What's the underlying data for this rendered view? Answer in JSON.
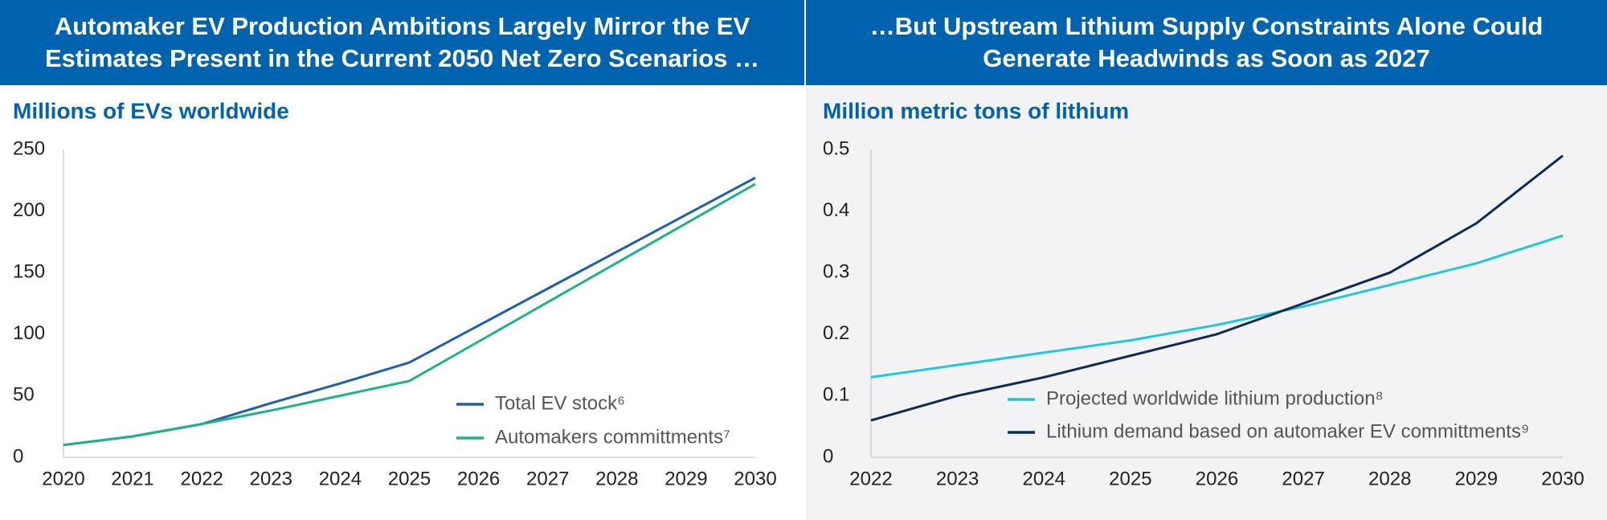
{
  "chart_data": [
    {
      "type": "line",
      "title": "Automaker EV Production Ambitions Largely Mirror the EV Estimates Present in the Current 2050 Net Zero Scenarios …",
      "subtitle": "Millions of EVs worldwide",
      "categories": [
        "2020",
        "2021",
        "2022",
        "2023",
        "2024",
        "2025",
        "2026",
        "2027",
        "2028",
        "2029",
        "2030"
      ],
      "series": [
        {
          "name": "Total EV stock⁶",
          "color": "#1f5fa6",
          "values": [
            10,
            17,
            27,
            44,
            60,
            77,
            107,
            137,
            167,
            197,
            227
          ]
        },
        {
          "name": "Automakers committments⁷",
          "color": "#1db38a",
          "values": [
            10,
            17,
            27,
            38,
            50,
            62,
            94,
            126,
            158,
            190,
            222
          ]
        }
      ],
      "ylim": [
        0,
        250
      ],
      "yticks": [
        0,
        50,
        100,
        150,
        200,
        250
      ]
    },
    {
      "type": "line",
      "title": "…But Upstream Lithium Supply Constraints Alone Could Generate Headwinds as Soon as 2027",
      "subtitle": "Million metric tons of lithium",
      "categories": [
        "2022",
        "2023",
        "2024",
        "2025",
        "2026",
        "2027",
        "2028",
        "2029",
        "2030"
      ],
      "series": [
        {
          "name": "Projected worldwide lithium production⁸",
          "color": "#1ec8d4",
          "values": [
            0.13,
            0.15,
            0.17,
            0.19,
            0.215,
            0.245,
            0.28,
            0.315,
            0.36
          ]
        },
        {
          "name": "Lithium demand based on automaker EV committments⁹",
          "color": "#0d2c54",
          "values": [
            0.06,
            0.1,
            0.13,
            0.165,
            0.2,
            0.25,
            0.3,
            0.38,
            0.49
          ]
        }
      ],
      "ylim": [
        0,
        0.5
      ],
      "yticks": [
        0,
        0.1,
        0.2,
        0.3,
        0.4,
        0.5
      ]
    }
  ]
}
